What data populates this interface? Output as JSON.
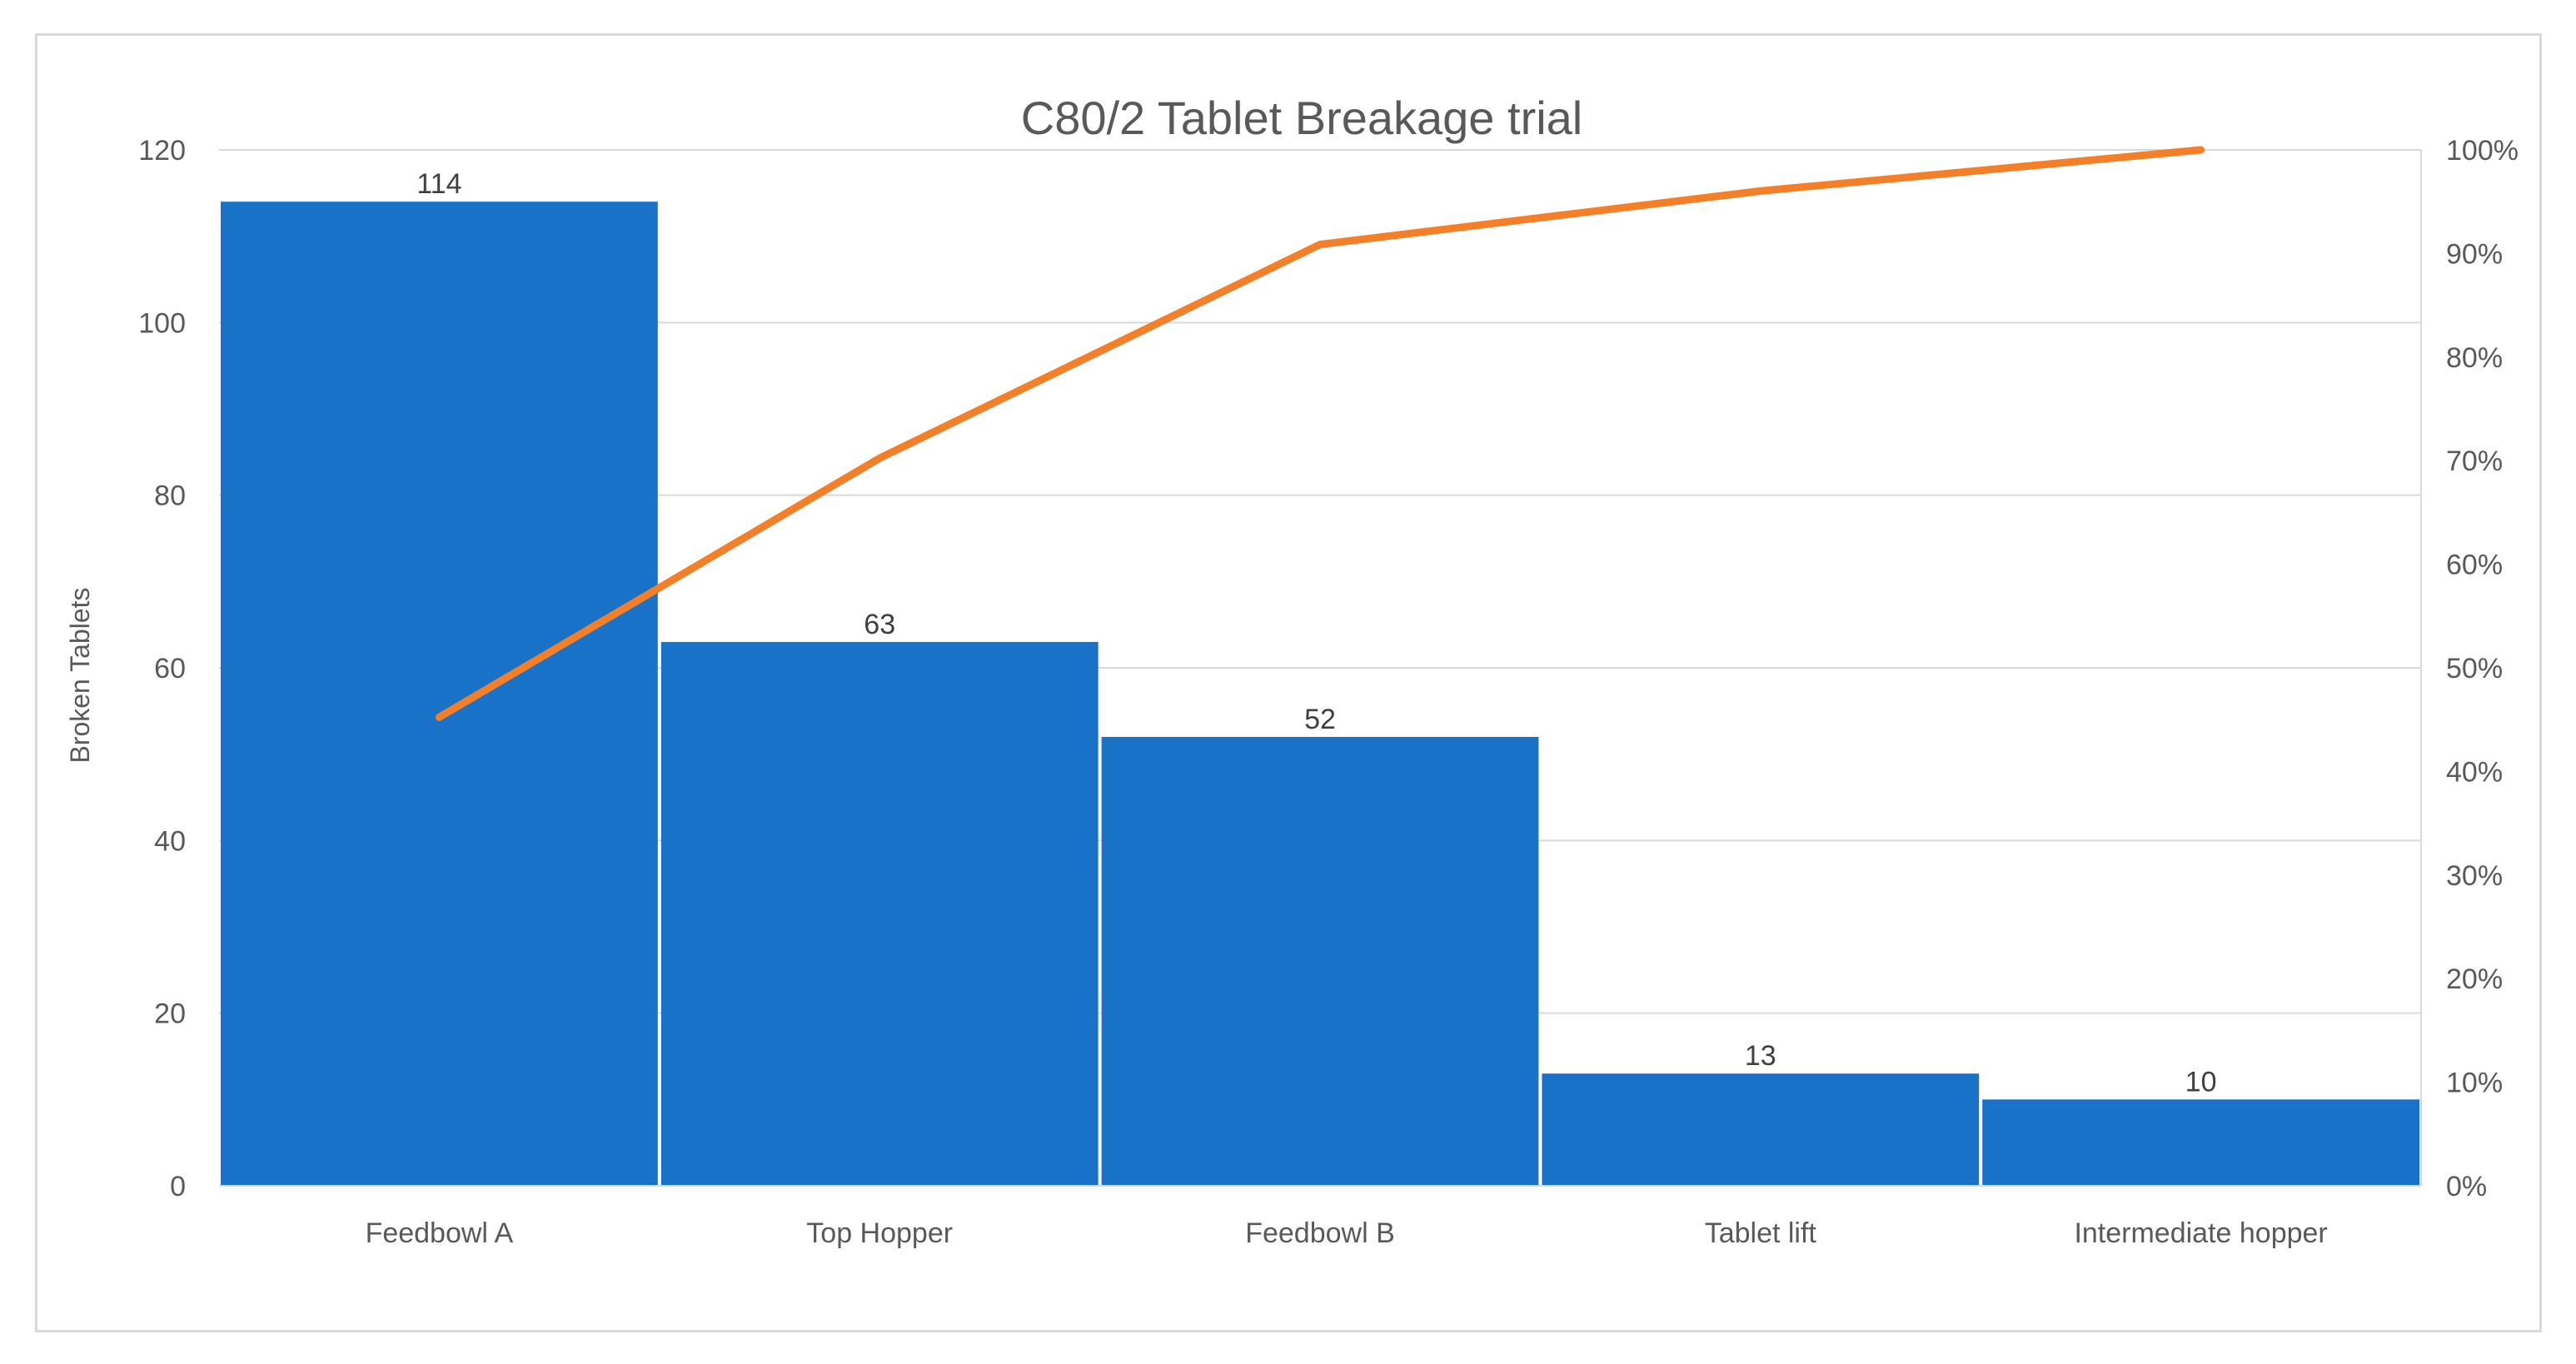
{
  "chart_data": {
    "type": "bar",
    "title": "C80/2 Tablet Breakage trial",
    "xlabel": "",
    "ylabel": "Broken Tablets",
    "ylim": [
      0,
      120
    ],
    "y_ticks": [
      "0",
      "20",
      "40",
      "60",
      "80",
      "100",
      "120"
    ],
    "y2lim": [
      0,
      1
    ],
    "y2_ticks": [
      "0%",
      "10%",
      "20%",
      "30%",
      "40%",
      "50%",
      "60%",
      "70%",
      "80%",
      "90%",
      "100%"
    ],
    "categories": [
      "Feedbowl A",
      "Top Hopper",
      "Feedbowl B",
      "Tablet lift",
      "Intermediate hopper"
    ],
    "series": [
      {
        "type": "bar",
        "axis": "primary",
        "values": [
          114,
          63,
          52,
          13,
          10
        ],
        "data_labels": [
          "114",
          "63",
          "52",
          "13",
          "10"
        ],
        "color": "#1772c8"
      },
      {
        "type": "line",
        "axis": "secondary",
        "values": [
          0.4524,
          0.7024,
          0.9087,
          0.9603,
          1.0
        ],
        "color": "#f47f29"
      }
    ],
    "grid": true,
    "legend": "none"
  }
}
